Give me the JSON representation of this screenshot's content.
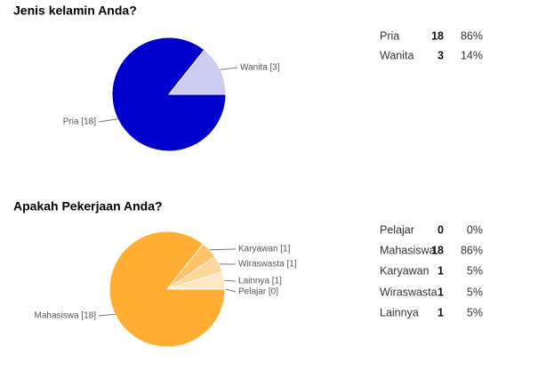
{
  "chart_data": [
    {
      "type": "pie",
      "title": "Jenis kelamin Anda?",
      "categories": [
        "Pria",
        "Wanita"
      ],
      "values": [
        18,
        3
      ],
      "value_labels": [
        "Pria [18]",
        "Wanita [3]"
      ],
      "percent_labels": [
        "86%",
        "14%"
      ],
      "colors": [
        "#0000cc",
        "#ccccf2"
      ]
    },
    {
      "type": "pie",
      "title": "Apakah Pekerjaan Anda?",
      "categories": [
        "Pelajar",
        "Mahasiswa",
        "Karyawan",
        "Wiraswasta",
        "Lainnya"
      ],
      "values": [
        0,
        18,
        1,
        1,
        1
      ],
      "value_labels": [
        "Pelajar [0]",
        "Mahasiswa [18]",
        "Karyawan [1]",
        "Wiraswasta [1]",
        "Lainnya [1]"
      ],
      "percent_labels": [
        "0%",
        "86%",
        "5%",
        "5%",
        "5%"
      ],
      "colors": [
        "#fff3e0",
        "#ffad33",
        "#ffc266",
        "#ffd699",
        "#ffe8c6"
      ]
    }
  ]
}
